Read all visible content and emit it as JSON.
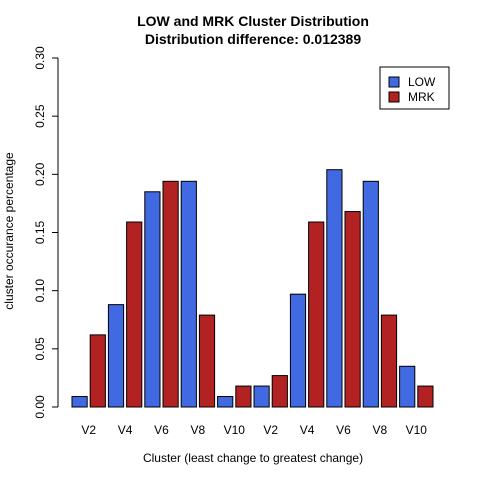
{
  "chart_data": {
    "type": "bar",
    "title": "LOW and MRK Cluster Distribution",
    "subtitle": "Distribution difference: 0.012389",
    "xlabel": "Cluster (least change to greatest change)",
    "ylabel": "cluster occurance percentage",
    "ylim": [
      0,
      0.3
    ],
    "yticks": [
      "0.00",
      "0.05",
      "0.10",
      "0.15",
      "0.20",
      "0.25",
      "0.30"
    ],
    "xtick_labels": [
      "V2",
      "V4",
      "V6",
      "V8",
      "V10",
      "V2",
      "V4",
      "V6",
      "V8",
      "V10"
    ],
    "legend_position": "top-right",
    "legend": [
      {
        "name": "LOW",
        "color": "#4169E1"
      },
      {
        "name": "MRK",
        "color": "#B22222"
      }
    ],
    "bars": [
      {
        "series": "LOW",
        "value": 0.009
      },
      {
        "series": "MRK",
        "value": 0.062
      },
      {
        "series": "LOW",
        "value": 0.088
      },
      {
        "series": "MRK",
        "value": 0.159
      },
      {
        "series": "LOW",
        "value": 0.185
      },
      {
        "series": "MRK",
        "value": 0.194
      },
      {
        "series": "LOW",
        "value": 0.194
      },
      {
        "series": "MRK",
        "value": 0.079
      },
      {
        "series": "LOW",
        "value": 0.009
      },
      {
        "series": "MRK",
        "value": 0.018
      },
      {
        "series": "LOW",
        "value": 0.018
      },
      {
        "series": "MRK",
        "value": 0.027
      },
      {
        "series": "LOW",
        "value": 0.097
      },
      {
        "series": "MRK",
        "value": 0.159
      },
      {
        "series": "LOW",
        "value": 0.204
      },
      {
        "series": "MRK",
        "value": 0.168
      },
      {
        "series": "LOW",
        "value": 0.194
      },
      {
        "series": "MRK",
        "value": 0.079
      },
      {
        "series": "LOW",
        "value": 0.035
      },
      {
        "series": "MRK",
        "value": 0.018
      }
    ]
  }
}
